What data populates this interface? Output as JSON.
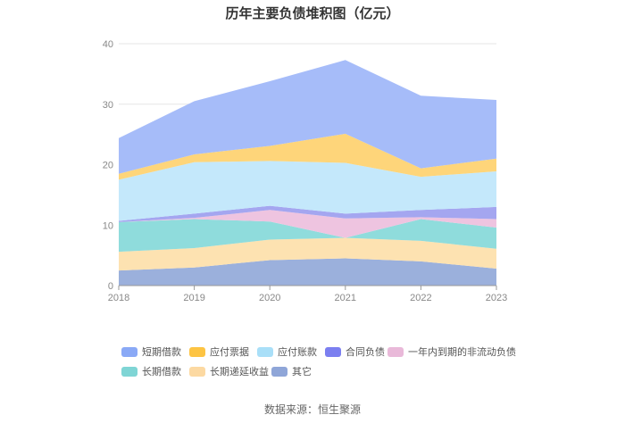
{
  "chart_data": {
    "type": "area",
    "stacked": true,
    "title": "历年主要负债堆积图（亿元）",
    "x": [
      "2018",
      "2019",
      "2020",
      "2021",
      "2022",
      "2023"
    ],
    "ylim": [
      0,
      40
    ],
    "yticks": [
      0,
      10,
      20,
      30,
      40
    ],
    "grid": true,
    "legend_position": "bottom",
    "series": [
      {
        "name": "其它",
        "color": "#9bb0dc",
        "values": [
          2.5,
          3.0,
          4.2,
          4.5,
          4.0,
          2.8
        ]
      },
      {
        "name": "长期递延收益",
        "color": "#fde2b1",
        "values": [
          3.1,
          3.2,
          3.4,
          3.4,
          3.4,
          3.3
        ]
      },
      {
        "name": "长期借款",
        "color": "#8fdcdc",
        "values": [
          4.9,
          4.8,
          3.0,
          0.0,
          3.6,
          3.5
        ]
      },
      {
        "name": "一年内到期的非流动负债",
        "color": "#eec4e0",
        "values": [
          0.0,
          0.2,
          1.9,
          3.2,
          0.3,
          1.4
        ]
      },
      {
        "name": "合同负债",
        "color": "#a4a6f0",
        "values": [
          0.2,
          0.7,
          0.7,
          0.8,
          1.2,
          2.0
        ]
      },
      {
        "name": "应付账款",
        "color": "#c4e8fb",
        "values": [
          6.8,
          8.5,
          7.4,
          8.4,
          5.5,
          5.9
        ]
      },
      {
        "name": "应付票据",
        "color": "#fed57a",
        "values": [
          1.0,
          1.3,
          2.5,
          4.8,
          1.4,
          2.1
        ]
      },
      {
        "name": "短期借款",
        "color": "#a6bcf9",
        "values": [
          5.9,
          8.8,
          10.7,
          12.2,
          12.0,
          9.7
        ]
      }
    ]
  },
  "legend": [
    {
      "label": "短期借款",
      "color": "#8aa9f6"
    },
    {
      "label": "应付票据",
      "color": "#fdc443"
    },
    {
      "label": "应付账款",
      "color": "#a9dff8"
    },
    {
      "label": "合同负债",
      "color": "#7b7ff0"
    },
    {
      "label": "一年内到期的非流动负债",
      "color": "#e9b9d9"
    },
    {
      "label": "长期借款",
      "color": "#7fd5d5"
    },
    {
      "label": "长期递延收益",
      "color": "#fcd9a2"
    },
    {
      "label": "其它",
      "color": "#8fa6d8"
    }
  ],
  "source": "数据来源：恒生聚源"
}
